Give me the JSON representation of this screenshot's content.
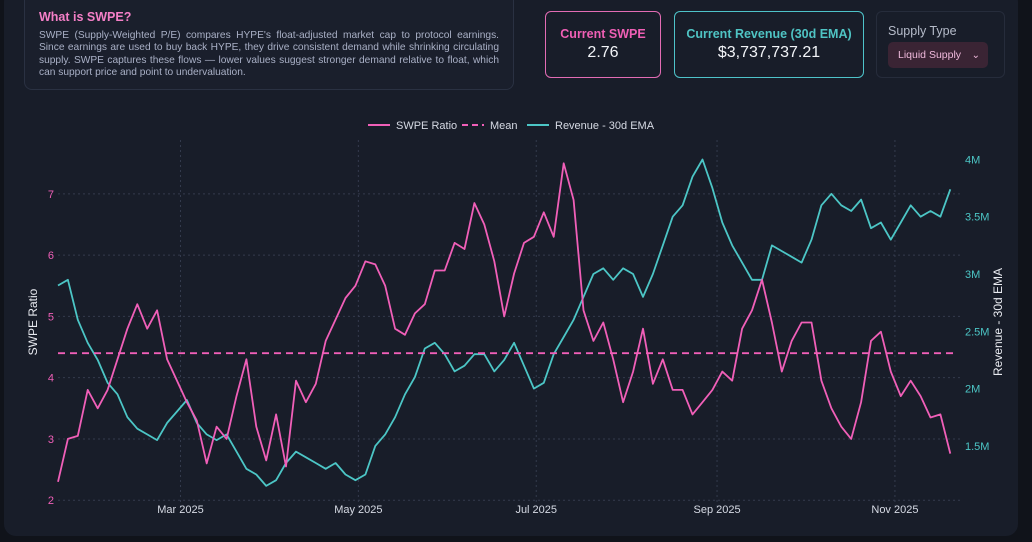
{
  "info": {
    "title": "What is SWPE?",
    "body": "SWPE (Supply-Weighted P/E) compares HYPE's float-adjusted market cap to protocol earnings. Since earnings are used to buy back HYPE, they drive consistent demand while shrinking circulating supply. SWPE captures these flows — lower values suggest stronger demand relative to float, which can support price and point to undervaluation."
  },
  "cards": {
    "swpe_label": "Current SWPE",
    "swpe_value": "2.76",
    "revenue_label": "Current Revenue (30d EMA)",
    "revenue_value": "$3,737,737.21",
    "supply_label": "Supply Type",
    "supply_selected": "Liquid Supply",
    "chevron": "⌄"
  },
  "colors": {
    "swpe": "#f05fb8",
    "revenue": "#4cc6c6",
    "grid": "#343b4d"
  },
  "chart_data": {
    "type": "line",
    "x_start": "2025-01-19",
    "x_step_days": 3.4,
    "x_ticks": [
      "Mar 2025",
      "May 2025",
      "Jul 2025",
      "Sep 2025",
      "Nov 2025"
    ],
    "x_tick_days": [
      59,
      120,
      181,
      243,
      304
    ],
    "x_range_days": [
      17,
      327
    ],
    "ylabel": "SWPE Ratio",
    "y2label": "Revenue - 30d EMA",
    "ylim": [
      1.84,
      7.88
    ],
    "y_ticks": [
      2,
      3,
      4,
      5,
      6,
      7
    ],
    "y2lim": [
      0.94,
      4.17
    ],
    "y2_ticks": [
      1.5,
      2,
      2.5,
      3,
      3.5,
      4
    ],
    "y2_tick_labels": [
      "1.5M",
      "2M",
      "2.5M",
      "3M",
      "3.5M",
      "4M"
    ],
    "legend": [
      "SWPE Ratio",
      "Mean",
      "Revenue - 30d EMA"
    ],
    "legend_position": "top-center",
    "grid": true,
    "mean": 4.4,
    "series": [
      {
        "name": "SWPE Ratio",
        "axis": "left",
        "values": [
          2.3,
          3.0,
          3.05,
          3.8,
          3.5,
          3.8,
          4.3,
          4.8,
          5.2,
          4.8,
          5.1,
          4.3,
          3.95,
          3.6,
          3.3,
          2.6,
          3.2,
          3.0,
          3.7,
          4.3,
          3.2,
          2.65,
          3.4,
          2.55,
          3.95,
          3.6,
          3.9,
          4.6,
          4.95,
          5.3,
          5.5,
          5.9,
          5.85,
          5.5,
          4.8,
          4.7,
          5.05,
          5.2,
          5.75,
          5.75,
          6.2,
          6.1,
          6.85,
          6.5,
          5.9,
          5.0,
          5.7,
          6.2,
          6.3,
          6.7,
          6.3,
          7.5,
          6.9,
          5.1,
          4.6,
          4.9,
          4.3,
          3.6,
          4.1,
          4.8,
          3.9,
          4.3,
          3.8,
          3.8,
          3.4,
          3.6,
          3.8,
          4.1,
          3.95,
          4.8,
          5.1,
          5.6,
          4.9,
          4.1,
          4.6,
          4.9,
          4.9,
          3.95,
          3.5,
          3.2,
          3.0,
          3.6,
          4.6,
          4.75,
          4.1,
          3.7,
          3.95,
          3.7,
          3.35,
          3.4,
          2.76
        ]
      },
      {
        "name": "Revenue - 30d EMA",
        "axis": "right",
        "unit": "M USD",
        "values": [
          2.9,
          2.95,
          2.6,
          2.4,
          2.25,
          2.05,
          1.95,
          1.75,
          1.65,
          1.6,
          1.55,
          1.7,
          1.8,
          1.9,
          1.7,
          1.6,
          1.55,
          1.6,
          1.45,
          1.3,
          1.25,
          1.15,
          1.2,
          1.35,
          1.45,
          1.4,
          1.35,
          1.3,
          1.35,
          1.25,
          1.2,
          1.25,
          1.5,
          1.6,
          1.75,
          1.95,
          2.1,
          2.35,
          2.4,
          2.3,
          2.15,
          2.2,
          2.3,
          2.3,
          2.15,
          2.25,
          2.4,
          2.2,
          2.0,
          2.05,
          2.3,
          2.45,
          2.6,
          2.8,
          3.0,
          3.05,
          2.95,
          3.05,
          3.0,
          2.8,
          3.0,
          3.25,
          3.5,
          3.6,
          3.85,
          4.0,
          3.75,
          3.45,
          3.25,
          3.1,
          2.95,
          2.95,
          3.25,
          3.2,
          3.15,
          3.1,
          3.3,
          3.6,
          3.7,
          3.6,
          3.55,
          3.65,
          3.4,
          3.45,
          3.3,
          3.45,
          3.6,
          3.5,
          3.55,
          3.5,
          3.74
        ]
      }
    ]
  }
}
